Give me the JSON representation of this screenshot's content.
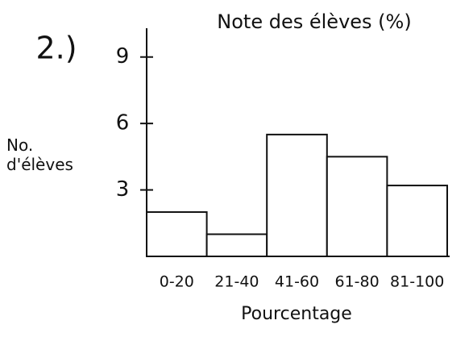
{
  "chart_data": {
    "type": "bar",
    "figure_label": "2.)",
    "title": "Note des élèves (%)",
    "ylabel": "No. d'élèves",
    "xlabel": "Pourcentage",
    "categories": [
      "0-20",
      "21-40",
      "41-60",
      "61-80",
      "81-100"
    ],
    "values": [
      2,
      1,
      5.5,
      4.5,
      3.2
    ],
    "color": "#ffffff",
    "ylim": [
      0,
      10.3
    ],
    "yticks": [
      3,
      6,
      9
    ],
    "grid": false
  }
}
